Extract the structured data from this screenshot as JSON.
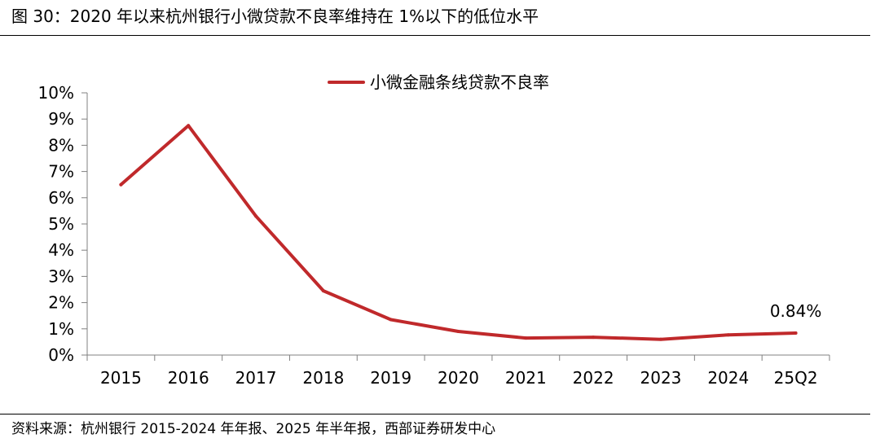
{
  "title": "图 30：2020 年以来杭州银行小微贷款不良率维持在 1%以下的低位水平",
  "source": "资料来源：杭州银行 2015-2024 年年报、2025 年半年报，西部证券研发中心",
  "chart_data": {
    "type": "line",
    "categories": [
      "2015",
      "2016",
      "2017",
      "2018",
      "2019",
      "2020",
      "2021",
      "2022",
      "2023",
      "2024",
      "25Q2"
    ],
    "series": [
      {
        "name": "小微金融条线贷款不良率",
        "color": "#C0292B",
        "values": [
          6.5,
          8.75,
          5.3,
          2.45,
          1.35,
          0.9,
          0.65,
          0.68,
          0.6,
          0.77,
          0.84
        ]
      }
    ],
    "y_ticks": [
      "0%",
      "1%",
      "2%",
      "3%",
      "4%",
      "5%",
      "6%",
      "7%",
      "8%",
      "9%",
      "10%"
    ],
    "ylim": [
      0,
      10
    ],
    "y_unit": "%",
    "annotation": {
      "category": "25Q2",
      "text": "0.84%"
    },
    "legend_position": "top-center",
    "grid": false
  }
}
